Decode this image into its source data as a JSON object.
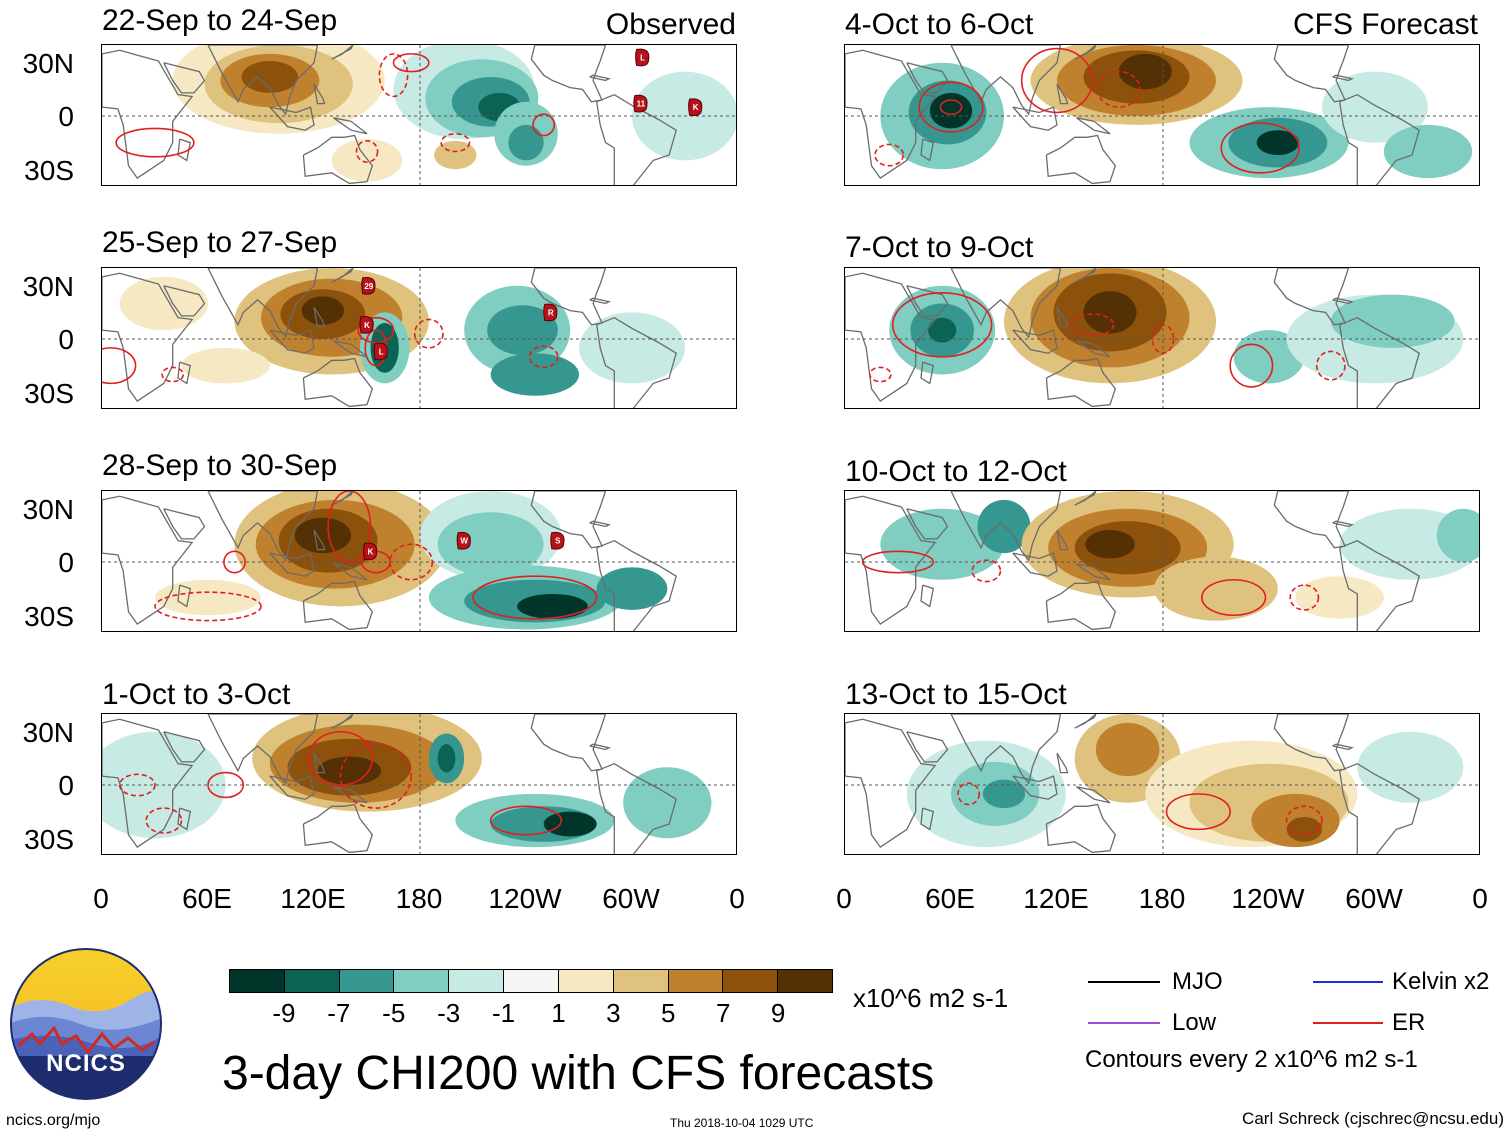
{
  "title": "3-day CHI200 with CFS forecasts",
  "observed_label": "Observed",
  "forecast_label": "CFS Forecast",
  "lat_labels": [
    "30N",
    "0",
    "30S"
  ],
  "lon_labels": [
    "0",
    "60E",
    "120E",
    "180",
    "120W",
    "60W",
    "0"
  ],
  "panels": [
    {
      "period": "22-Sep to 24-Sep",
      "kind": "observed"
    },
    {
      "period": "25-Sep to 27-Sep",
      "kind": "observed"
    },
    {
      "period": "28-Sep to 30-Sep",
      "kind": "observed"
    },
    {
      "period": "1-Oct to 3-Oct",
      "kind": "observed"
    },
    {
      "period": "4-Oct to 6-Oct",
      "kind": "forecast"
    },
    {
      "period": "7-Oct to 9-Oct",
      "kind": "forecast"
    },
    {
      "period": "10-Oct to 12-Oct",
      "kind": "forecast"
    },
    {
      "period": "13-Oct to 15-Oct",
      "kind": "forecast"
    }
  ],
  "colorbar": {
    "labels": [
      "-9",
      "-7",
      "-5",
      "-3",
      "-1",
      "1",
      "3",
      "5",
      "7",
      "9"
    ],
    "colors": [
      "#01352a",
      "#0b6355",
      "#35978f",
      "#80cdc1",
      "#c7eae5",
      "#f5f5f5",
      "#f6e8c3",
      "#dfc27d",
      "#bf812d",
      "#8c510a",
      "#543005"
    ],
    "units": "x10^6 m2 s-1"
  },
  "legend": {
    "items": [
      {
        "label": "MJO",
        "color": "#000000"
      },
      {
        "label": "Kelvin x2",
        "color": "#1f2fd6"
      },
      {
        "label": "Low",
        "color": "#9b4fd8"
      },
      {
        "label": "ER",
        "color": "#e02020"
      }
    ],
    "note": "Contours every 2 x10^6 m2 s-1"
  },
  "logo_text": "NCICS",
  "url": "ncics.org/mjo",
  "timestamp": "Thu 2018-10-04 1029 UTC",
  "credit": "Carl Schreck (cjschrec@ncsu.edu)",
  "storm_markers": [
    {
      "panel": 0,
      "label": "L"
    },
    {
      "panel": 0,
      "label": "11"
    },
    {
      "panel": 0,
      "label": "K"
    },
    {
      "panel": 1,
      "label": "29"
    },
    {
      "panel": 1,
      "label": "K"
    },
    {
      "panel": 1,
      "label": "L"
    },
    {
      "panel": 1,
      "label": "R"
    },
    {
      "panel": 2,
      "label": "K"
    },
    {
      "panel": 2,
      "label": "W"
    },
    {
      "panel": 2,
      "label": "S"
    }
  ]
}
